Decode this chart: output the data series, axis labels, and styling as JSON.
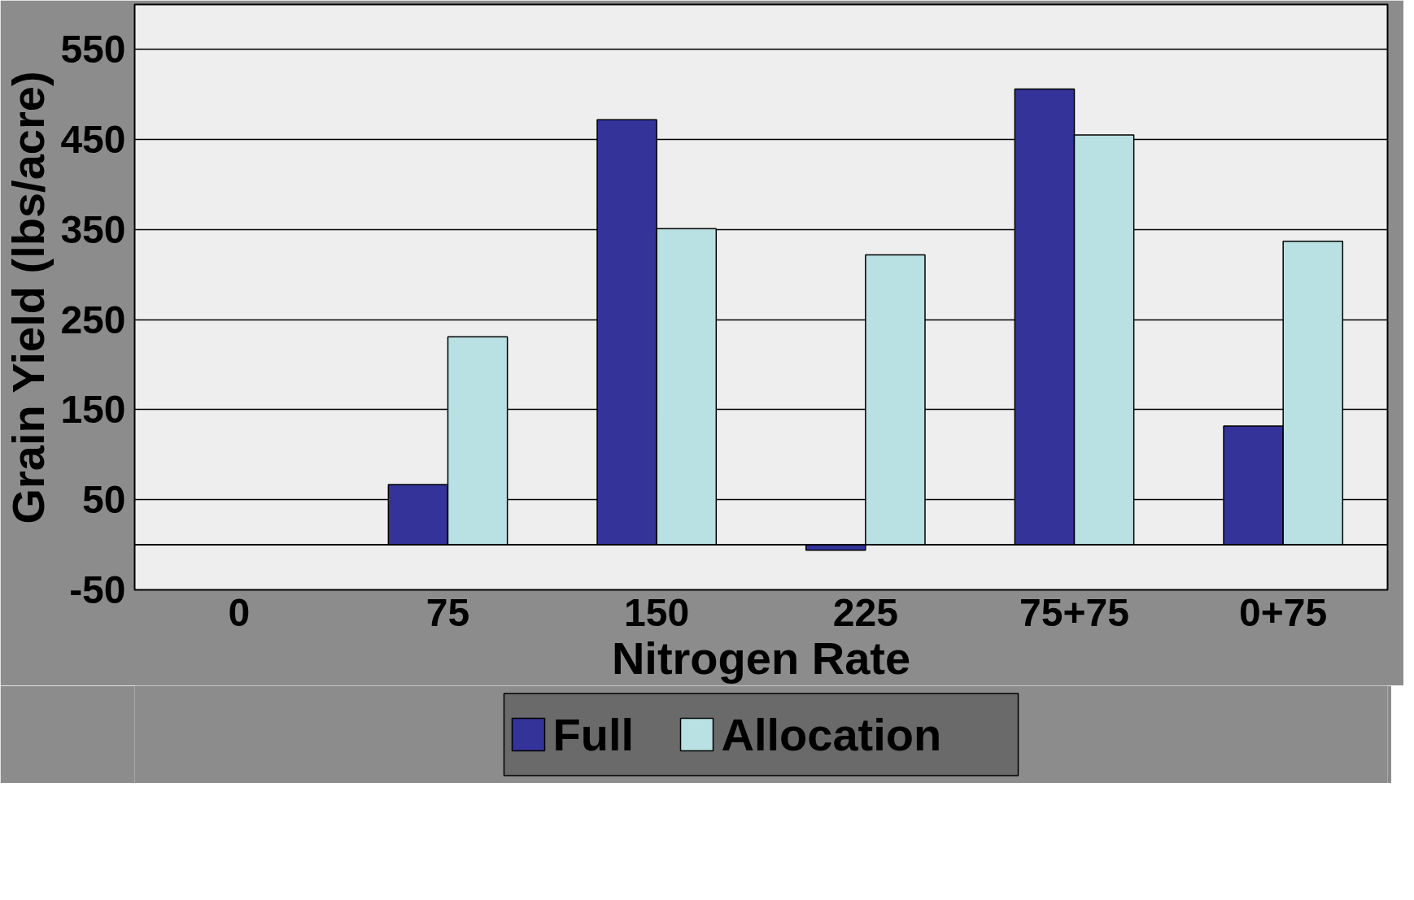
{
  "chart_data": {
    "type": "bar",
    "xlabel": "Nitrogen Rate",
    "ylabel": "Grain Yield (lbs/acre)",
    "categories": [
      "0",
      "75",
      "150",
      "225",
      "75+75",
      "0+75"
    ],
    "series": [
      {
        "name": "Full",
        "color": "#333399",
        "values": [
          null,
          67,
          472,
          -6,
          506,
          132
        ]
      },
      {
        "name": "Allocation",
        "color": "#b9e0e2",
        "values": [
          null,
          231,
          351,
          322,
          455,
          337
        ]
      }
    ],
    "ylim": [
      -50,
      600
    ],
    "yticks": [
      -50,
      50,
      150,
      250,
      350,
      450,
      550
    ],
    "grid": "y",
    "legend": "bottom",
    "ref_lines": [
      {
        "axis": "y",
        "value": 0
      }
    ]
  }
}
